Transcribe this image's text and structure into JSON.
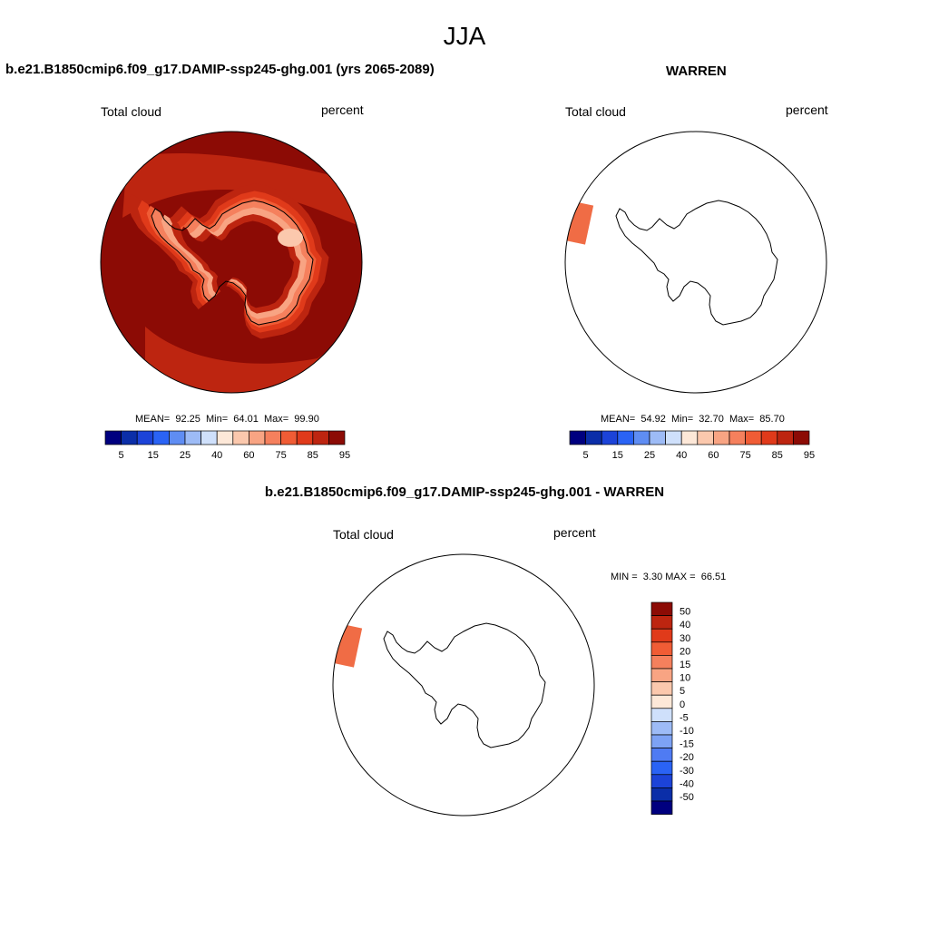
{
  "figure": {
    "title": "JJA"
  },
  "panels": {
    "model": {
      "title": "b.e21.B1850cmip6.f09_g17.DAMIP-ssp245-ghg.001 (yrs 2065-2089)",
      "field": "Total cloud",
      "units": "percent",
      "stats": {
        "mean_label": "MEAN=",
        "mean": "92.25",
        "min_label": "Min=",
        "min": "64.01",
        "max_label": "Max=",
        "max": "99.90"
      }
    },
    "obs": {
      "title": "WARREN",
      "field": "Total cloud",
      "units": "percent",
      "stats": {
        "mean_label": "MEAN=",
        "mean": "54.92",
        "min_label": "Min=",
        "min": "32.70",
        "max_label": "Max=",
        "max": "85.70"
      }
    },
    "diff": {
      "title": "b.e21.B1850cmip6.f09_g17.DAMIP-ssp245-ghg.001 - WARREN",
      "field": "Total cloud",
      "units": "percent",
      "stats": {
        "min_label": "MIN =",
        "min": "3.30",
        "max_label": "MAX =",
        "max": "66.51"
      }
    }
  },
  "colorbars": {
    "absolute": {
      "colors": [
        "#00007f",
        "#0b2ea8",
        "#1c43d8",
        "#2a63f5",
        "#5f8df3",
        "#9dbbf6",
        "#cfe0fb",
        "#fde8d8",
        "#fbc8ad",
        "#f8a483",
        "#f5805d",
        "#f05c35",
        "#e03a1a",
        "#bd2510",
        "#8c0b05"
      ],
      "tick_labels": [
        "5",
        "15",
        "25",
        "40",
        "60",
        "75",
        "85",
        "95"
      ],
      "tick_positions": [
        1,
        3,
        5,
        7,
        9,
        11,
        13,
        15
      ]
    },
    "difference": {
      "colors": [
        "#8c0b05",
        "#bd2510",
        "#e03a1a",
        "#f05c35",
        "#f5805d",
        "#f8a483",
        "#fbc8ad",
        "#fde8d8",
        "#cfe0fb",
        "#9dbbf6",
        "#7da2f4",
        "#4f7bf3",
        "#2a63f5",
        "#1c43d8",
        "#0b2ea8",
        "#00007f"
      ],
      "tick_labels": [
        "50",
        "40",
        "30",
        "20",
        "15",
        "10",
        "5",
        "0",
        "-5",
        "-10",
        "-15",
        "-20",
        "-30",
        "-40",
        "-50"
      ]
    }
  },
  "map_data": {
    "projection": "south polar stereographic",
    "model_field_palette": {
      "dominant": "#8c0b05",
      "coastal_band": "#bd2510",
      "ridge": "#e03a1a",
      "ice_edge": "#f05c35",
      "plateau_low": "#f8a483",
      "plateau_min": "#fbc8ad"
    },
    "obs_and_diff_shading": {
      "only_sector": "west of Antarctic Peninsula",
      "color": "#f06c45"
    }
  }
}
